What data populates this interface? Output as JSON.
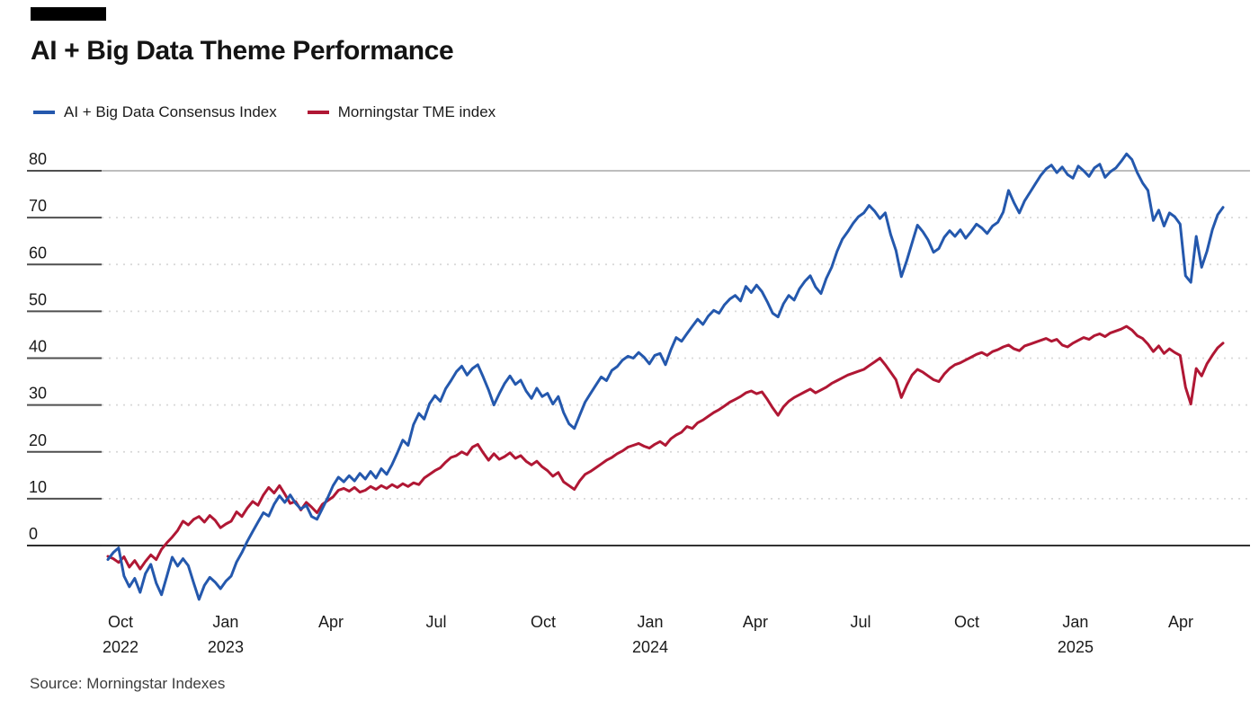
{
  "brand_bar_color": "#000000",
  "title": "AI + Big Data Theme Performance",
  "legend": [
    {
      "label": "AI + Big Data Consensus Index",
      "color": "#2458ad"
    },
    {
      "label": "Morningstar TME index",
      "color": "#b01734"
    }
  ],
  "source": "Source: Morningstar Indexes",
  "chart_data": {
    "type": "line",
    "title": "AI + Big Data Theme Performance",
    "grid": "horizontal-dashed",
    "legend_position": "top-left",
    "y_axis": {
      "ticks": [
        80,
        70,
        60,
        50,
        40,
        30,
        20,
        10,
        0
      ],
      "range": [
        -13,
        86
      ],
      "solid_gridline_at": 80,
      "zero_line": true
    },
    "x_axis": {
      "ticks": [
        {
          "month": "Oct",
          "year": "2022",
          "f": 0.0113
        },
        {
          "month": "Jan",
          "year": "2023",
          "f": 0.1056
        },
        {
          "month": "Apr",
          "year": "",
          "f": 0.2
        },
        {
          "month": "Jul",
          "year": "",
          "f": 0.2944
        },
        {
          "month": "Oct",
          "year": "",
          "f": 0.3903
        },
        {
          "month": "Jan",
          "year": "2024",
          "f": 0.4863
        },
        {
          "month": "Apr",
          "year": "",
          "f": 0.5806
        },
        {
          "month": "Jul",
          "year": "",
          "f": 0.675
        },
        {
          "month": "Oct",
          "year": "",
          "f": 0.7702
        },
        {
          "month": "Jan",
          "year": "2025",
          "f": 0.8677
        },
        {
          "month": "Apr",
          "year": "",
          "f": 0.9621
        }
      ]
    },
    "series": [
      {
        "name": "AI + Big Data Consensus Index",
        "color": "#2458ad",
        "values": [
          -3.0,
          -1.5,
          -0.5,
          -6.5,
          -8.8,
          -7.0,
          -10.0,
          -6.0,
          -4.0,
          -8.0,
          -10.5,
          -6.5,
          -2.5,
          -4.4,
          -2.8,
          -4.3,
          -8.0,
          -11.5,
          -8.5,
          -6.8,
          -7.8,
          -9.2,
          -7.6,
          -6.5,
          -3.5,
          -1.5,
          0.9,
          3.0,
          5.0,
          7.0,
          6.3,
          8.8,
          10.6,
          9.2,
          10.8,
          9.0,
          7.8,
          8.6,
          6.2,
          5.6,
          7.9,
          10.2,
          12.8,
          14.6,
          13.6,
          14.9,
          13.8,
          15.4,
          14.2,
          15.8,
          14.4,
          16.4,
          15.2,
          17.3,
          19.8,
          22.5,
          21.4,
          25.8,
          28.2,
          27.0,
          30.3,
          32.0,
          30.8,
          33.5,
          35.2,
          37.1,
          38.3,
          36.4,
          37.8,
          38.6,
          36.0,
          33.2,
          30.0,
          32.4,
          34.6,
          36.2,
          34.4,
          35.3,
          33.0,
          31.4,
          33.6,
          31.8,
          32.5,
          30.2,
          31.8,
          28.4,
          26.0,
          25.0,
          27.8,
          30.6,
          32.4,
          34.2,
          36.0,
          35.2,
          37.4,
          38.2,
          39.6,
          40.4,
          40.0,
          41.2,
          40.2,
          38.8,
          40.6,
          41.0,
          38.6,
          41.8,
          44.4,
          43.6,
          45.2,
          46.8,
          48.3,
          47.2,
          49.0,
          50.2,
          49.6,
          51.4,
          52.6,
          53.4,
          52.2,
          55.3,
          54.0,
          55.6,
          54.2,
          52.0,
          49.6,
          48.8,
          51.6,
          53.4,
          52.4,
          54.8,
          56.4,
          57.6,
          55.2,
          53.8,
          57.0,
          59.4,
          62.8,
          65.4,
          67.0,
          68.8,
          70.2,
          71.0,
          72.6,
          71.4,
          69.8,
          71.0,
          66.4,
          63.0,
          57.4,
          60.8,
          64.6,
          68.4,
          67.0,
          65.2,
          62.6,
          63.4,
          65.8,
          67.2,
          66.0,
          67.4,
          65.6,
          67.0,
          68.6,
          67.8,
          66.6,
          68.2,
          69.0,
          71.2,
          75.8,
          73.2,
          71.0,
          73.6,
          75.4,
          77.2,
          79.0,
          80.4,
          81.2,
          79.6,
          80.8,
          79.2,
          78.4,
          81.0,
          80.0,
          78.8,
          80.6,
          81.4,
          78.6,
          79.8,
          80.6,
          82.0,
          83.6,
          82.4,
          79.6,
          77.4,
          75.8,
          69.4,
          71.6,
          68.2,
          71.0,
          70.2,
          68.6,
          57.6,
          56.2,
          66.0,
          59.4,
          62.8,
          67.4,
          70.6,
          72.2
        ]
      },
      {
        "name": "Morningstar TME index",
        "color": "#b01734",
        "values": [
          -2.3,
          -2.8,
          -3.6,
          -2.4,
          -4.6,
          -3.2,
          -5.0,
          -3.4,
          -2.0,
          -3.0,
          -0.8,
          0.6,
          1.8,
          3.2,
          5.2,
          4.4,
          5.6,
          6.2,
          5.0,
          6.4,
          5.4,
          3.8,
          4.6,
          5.2,
          7.2,
          6.2,
          8.0,
          9.4,
          8.6,
          10.8,
          12.4,
          11.2,
          12.8,
          11.0,
          9.0,
          9.4,
          7.6,
          9.2,
          8.2,
          7.0,
          8.8,
          9.6,
          10.4,
          11.8,
          12.2,
          11.6,
          12.4,
          11.4,
          11.8,
          12.6,
          12.0,
          12.8,
          12.2,
          13.0,
          12.4,
          13.2,
          12.6,
          13.4,
          13.0,
          14.4,
          15.2,
          16.0,
          16.6,
          17.8,
          18.8,
          19.2,
          20.0,
          19.4,
          21.0,
          21.6,
          19.8,
          18.2,
          19.6,
          18.4,
          19.0,
          19.8,
          18.6,
          19.2,
          18.0,
          17.2,
          18.0,
          16.8,
          16.0,
          14.8,
          15.6,
          13.6,
          12.8,
          12.0,
          13.8,
          15.2,
          15.8,
          16.6,
          17.4,
          18.2,
          18.8,
          19.6,
          20.2,
          21.0,
          21.4,
          21.8,
          21.2,
          20.8,
          21.6,
          22.2,
          21.4,
          22.8,
          23.6,
          24.2,
          25.4,
          25.0,
          26.2,
          26.8,
          27.6,
          28.4,
          29.0,
          29.8,
          30.6,
          31.2,
          31.8,
          32.6,
          33.0,
          32.4,
          32.8,
          31.2,
          29.4,
          27.8,
          29.6,
          30.8,
          31.6,
          32.2,
          32.8,
          33.4,
          32.6,
          33.2,
          33.8,
          34.6,
          35.2,
          35.8,
          36.4,
          36.8,
          37.2,
          37.6,
          38.4,
          39.2,
          40.0,
          38.6,
          37.0,
          35.4,
          31.6,
          34.2,
          36.4,
          37.6,
          37.0,
          36.2,
          35.4,
          35.0,
          36.6,
          37.8,
          38.6,
          39.0,
          39.6,
          40.2,
          40.8,
          41.2,
          40.6,
          41.4,
          41.8,
          42.4,
          42.8,
          42.0,
          41.6,
          42.6,
          43.0,
          43.4,
          43.8,
          44.2,
          43.6,
          44.0,
          42.8,
          42.4,
          43.2,
          43.8,
          44.4,
          44.0,
          44.8,
          45.2,
          44.6,
          45.4,
          45.8,
          46.2,
          46.8,
          46.0,
          44.8,
          44.2,
          43.0,
          41.4,
          42.6,
          41.0,
          42.0,
          41.2,
          40.6,
          33.8,
          30.2,
          37.8,
          36.2,
          38.8,
          40.6,
          42.2,
          43.2
        ]
      }
    ]
  }
}
